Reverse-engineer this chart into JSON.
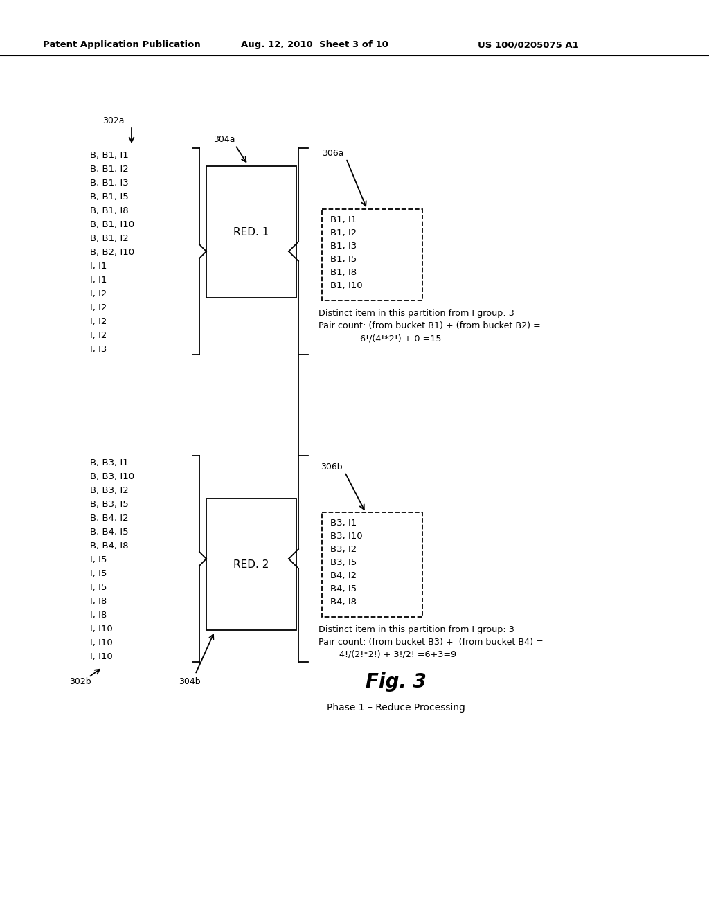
{
  "header_left": "Patent Application Publication",
  "header_mid": "Aug. 12, 2010  Sheet 3 of 10",
  "header_right": "US 100/0205075 A1",
  "fig_label": "Fig. 3",
  "phase_label": "Phase 1 – Reduce Processing",
  "group1_label": "302a",
  "group1_items": [
    "B, B1, I1",
    "B, B1, I2",
    "B, B1, I3",
    "B, B1, I5",
    "B, B1, I8",
    "B, B1, I10",
    "B, B1, I2",
    "B, B2, I10",
    "I, I1",
    "I, I1",
    "I, I2",
    "I, I2",
    "I, I2",
    "I, I2",
    "I, I3"
  ],
  "group2_label": "302b",
  "group2_items": [
    "B, B3, I1",
    "B, B3, I10",
    "B, B3, I2",
    "B, B3, I5",
    "B, B4, I2",
    "B, B4, I5",
    "B, B4, I8",
    "I, I5",
    "I, I5",
    "I, I5",
    "I, I8",
    "I, I8",
    "I, I10",
    "I, I10",
    "I, I10"
  ],
  "red1_label": "304a",
  "red1_text": "RED. 1",
  "red2_label": "304b",
  "red2_text": "RED. 2",
  "out1_label": "306a",
  "out1_items": [
    "B1, I1",
    "B1, I2",
    "B1, I3",
    "B1, I5",
    "B1, I8",
    "B1, I10"
  ],
  "out1_note1": "Distinct item in this partition from I group: 3",
  "out1_note2": "Pair count: (from bucket B1) + (from bucket B2) =",
  "out1_note3": "6!/(4!*2!) + 0 =15",
  "out2_label": "306b",
  "out2_items": [
    "B3, I1",
    "B3, I10",
    "B3, I2",
    "B3, I5",
    "B4, I2",
    "B4, I5",
    "B4, I8"
  ],
  "out2_note1": "Distinct item in this partition from I group: 3",
  "out2_note2": "Pair count: (from bucket B3) +  (from bucket B4) =",
  "out2_note3": "4!/(2!*2!) + 3!/2! =6+3=9"
}
